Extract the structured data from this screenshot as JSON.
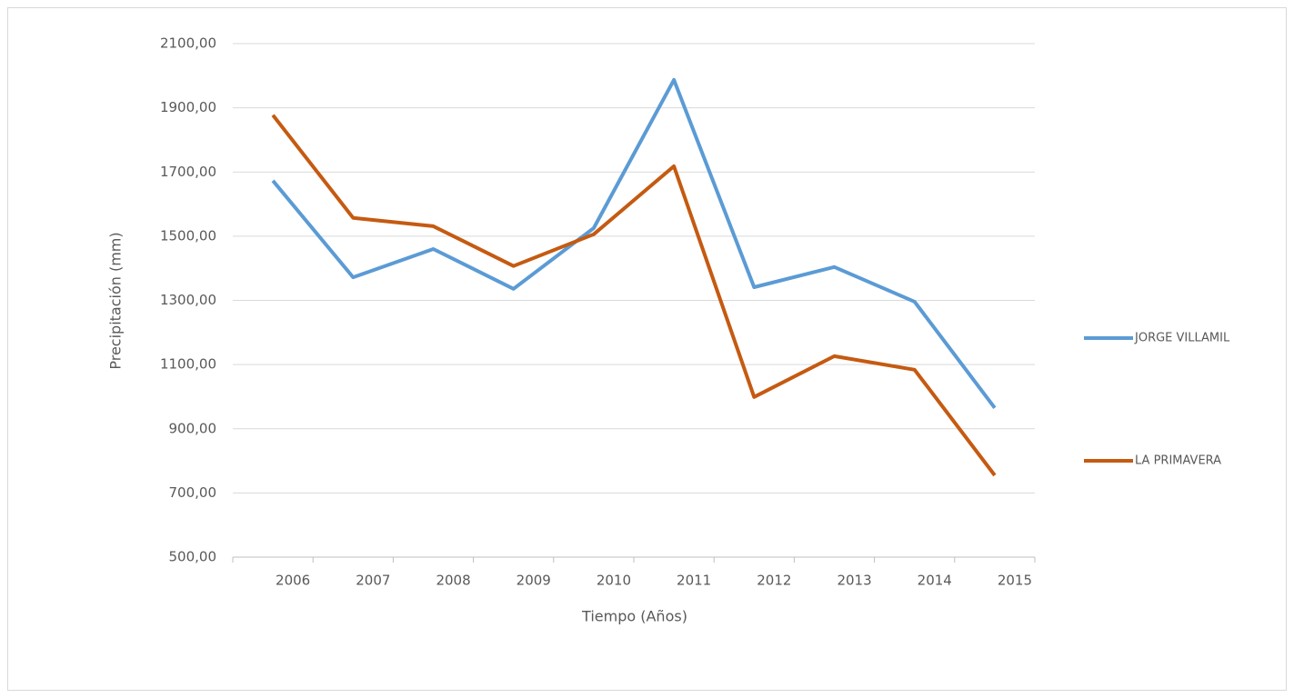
{
  "chart_data": {
    "type": "line",
    "x_label": "Tiempo (Años)",
    "y_label": "Precipitación (mm)",
    "categories": [
      "2006",
      "2007",
      "2008",
      "2009",
      "2010",
      "2011",
      "2012",
      "2013",
      "2014",
      "2015"
    ],
    "series": [
      {
        "name": "JORGE VILLAMIL",
        "color": "#5b9bd5",
        "values": [
          1673,
          1372,
          1460,
          1336,
          1525,
          1987,
          1341,
          1404,
          1296,
          965
        ]
      },
      {
        "name": "LA PRIMAVERA",
        "color": "#c55a11",
        "values": [
          1877,
          1557,
          1531,
          1407,
          1506,
          1718,
          999,
          1126,
          1084,
          755
        ]
      }
    ],
    "ylim": [
      500,
      2100
    ],
    "yticks": [
      {
        "value": 500,
        "label": "500,00"
      },
      {
        "value": 700,
        "label": "700,00"
      },
      {
        "value": 900,
        "label": "900,00"
      },
      {
        "value": 1100,
        "label": "1100,00"
      },
      {
        "value": 1300,
        "label": "1300,00"
      },
      {
        "value": 1500,
        "label": "1500,00"
      },
      {
        "value": 1700,
        "label": "1700,00"
      },
      {
        "value": 1900,
        "label": "1900,00"
      },
      {
        "value": 2100,
        "label": "2100,00"
      }
    ],
    "grid": true,
    "legend": "right"
  }
}
